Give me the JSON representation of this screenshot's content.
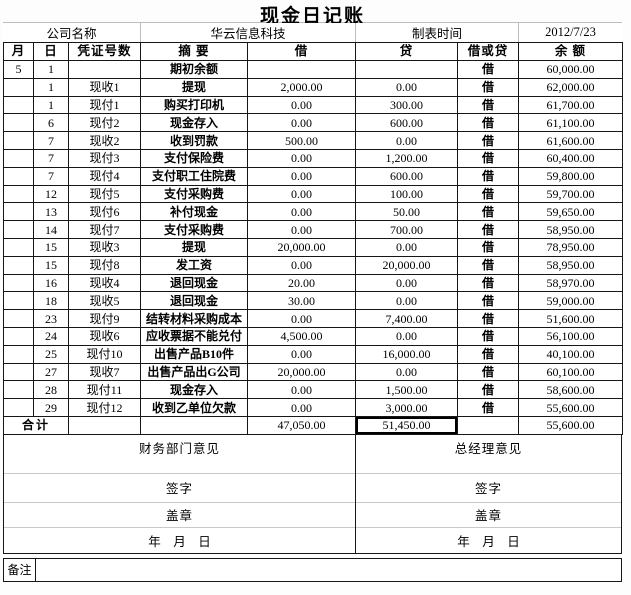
{
  "title": "现金日记账",
  "info": {
    "company_label": "公司名称",
    "company_value": "华云信息科技",
    "date_label": "制表时间",
    "date_value": "2012/7/23"
  },
  "journal": {
    "columns": [
      "月",
      "日",
      "凭证号数",
      "摘 要",
      "借",
      "贷",
      "借或贷",
      "余 额"
    ],
    "rows": [
      {
        "month": "5",
        "day": "1",
        "voucher": "",
        "summary": "期初余额",
        "debit": "",
        "credit": "",
        "dc": "借",
        "balance": "60,000.00"
      },
      {
        "month": "",
        "day": "1",
        "voucher": "现收1",
        "summary": "提现",
        "debit": "2,000.00",
        "credit": "0.00",
        "dc": "借",
        "balance": "62,000.00"
      },
      {
        "month": "",
        "day": "1",
        "voucher": "现付1",
        "summary": "购买打印机",
        "debit": "0.00",
        "credit": "300.00",
        "dc": "借",
        "balance": "61,700.00"
      },
      {
        "month": "",
        "day": "6",
        "voucher": "现付2",
        "summary": "现金存入",
        "debit": "0.00",
        "credit": "600.00",
        "dc": "借",
        "balance": "61,100.00"
      },
      {
        "month": "",
        "day": "7",
        "voucher": "现收2",
        "summary": "收到罚款",
        "debit": "500.00",
        "credit": "0.00",
        "dc": "借",
        "balance": "61,600.00"
      },
      {
        "month": "",
        "day": "7",
        "voucher": "现付3",
        "summary": "支付保险费",
        "debit": "0.00",
        "credit": "1,200.00",
        "dc": "借",
        "balance": "60,400.00"
      },
      {
        "month": "",
        "day": "7",
        "voucher": "现付4",
        "summary": "支付职工住院费",
        "debit": "0.00",
        "credit": "600.00",
        "dc": "借",
        "balance": "59,800.00"
      },
      {
        "month": "",
        "day": "12",
        "voucher": "现付5",
        "summary": "支付采购费",
        "debit": "0.00",
        "credit": "100.00",
        "dc": "借",
        "balance": "59,700.00"
      },
      {
        "month": "",
        "day": "13",
        "voucher": "现付6",
        "summary": "补付现金",
        "debit": "0.00",
        "credit": "50.00",
        "dc": "借",
        "balance": "59,650.00"
      },
      {
        "month": "",
        "day": "14",
        "voucher": "现付7",
        "summary": "支付采购费",
        "debit": "0.00",
        "credit": "700.00",
        "dc": "借",
        "balance": "58,950.00"
      },
      {
        "month": "",
        "day": "15",
        "voucher": "现收3",
        "summary": "提现",
        "debit": "20,000.00",
        "credit": "0.00",
        "dc": "借",
        "balance": "78,950.00"
      },
      {
        "month": "",
        "day": "15",
        "voucher": "现付8",
        "summary": "发工资",
        "debit": "0.00",
        "credit": "20,000.00",
        "dc": "借",
        "balance": "58,950.00"
      },
      {
        "month": "",
        "day": "16",
        "voucher": "现收4",
        "summary": "退回现金",
        "debit": "20.00",
        "credit": "0.00",
        "dc": "借",
        "balance": "58,970.00"
      },
      {
        "month": "",
        "day": "18",
        "voucher": "现收5",
        "summary": "退回现金",
        "debit": "30.00",
        "credit": "0.00",
        "dc": "借",
        "balance": "59,000.00"
      },
      {
        "month": "",
        "day": "23",
        "voucher": "现付9",
        "summary": "结转材料采购成本",
        "debit": "0.00",
        "credit": "7,400.00",
        "dc": "借",
        "balance": "51,600.00"
      },
      {
        "month": "",
        "day": "24",
        "voucher": "现收6",
        "summary": "应收票据不能兑付",
        "debit": "4,500.00",
        "credit": "0.00",
        "dc": "借",
        "balance": "56,100.00"
      },
      {
        "month": "",
        "day": "25",
        "voucher": "现付10",
        "summary": "出售产品B10件",
        "debit": "0.00",
        "credit": "16,000.00",
        "dc": "借",
        "balance": "40,100.00"
      },
      {
        "month": "",
        "day": "27",
        "voucher": "现收7",
        "summary": "出售产品出G公司",
        "debit": "20,000.00",
        "credit": "0.00",
        "dc": "借",
        "balance": "60,100.00"
      },
      {
        "month": "",
        "day": "28",
        "voucher": "现付11",
        "summary": "现金存入",
        "debit": "0.00",
        "credit": "1,500.00",
        "dc": "借",
        "balance": "58,600.00"
      },
      {
        "month": "",
        "day": "29",
        "voucher": "现付12",
        "summary": "收到乙单位欠款",
        "debit": "0.00",
        "credit": "3,000.00",
        "dc": "借",
        "balance": "55,600.00"
      }
    ],
    "total": {
      "label": "合计",
      "voucher": "",
      "summary": "",
      "debit": "47,050.00",
      "credit": "51,450.00",
      "dc": "",
      "balance": "55,600.00",
      "selected_cell": "credit"
    }
  },
  "footer": {
    "finance_opinion": "财务部门意见",
    "manager_opinion": "总经理意见",
    "sign_label": "签字",
    "seal_label": "盖章",
    "date_line": "年　月　日",
    "remark_label": "备注",
    "remark_value": ""
  },
  "colors": {
    "background": "#ffffff",
    "table_border": "#161616",
    "light_border": "#bdbdbd",
    "text": "#000000",
    "selection_border": "#000000"
  }
}
